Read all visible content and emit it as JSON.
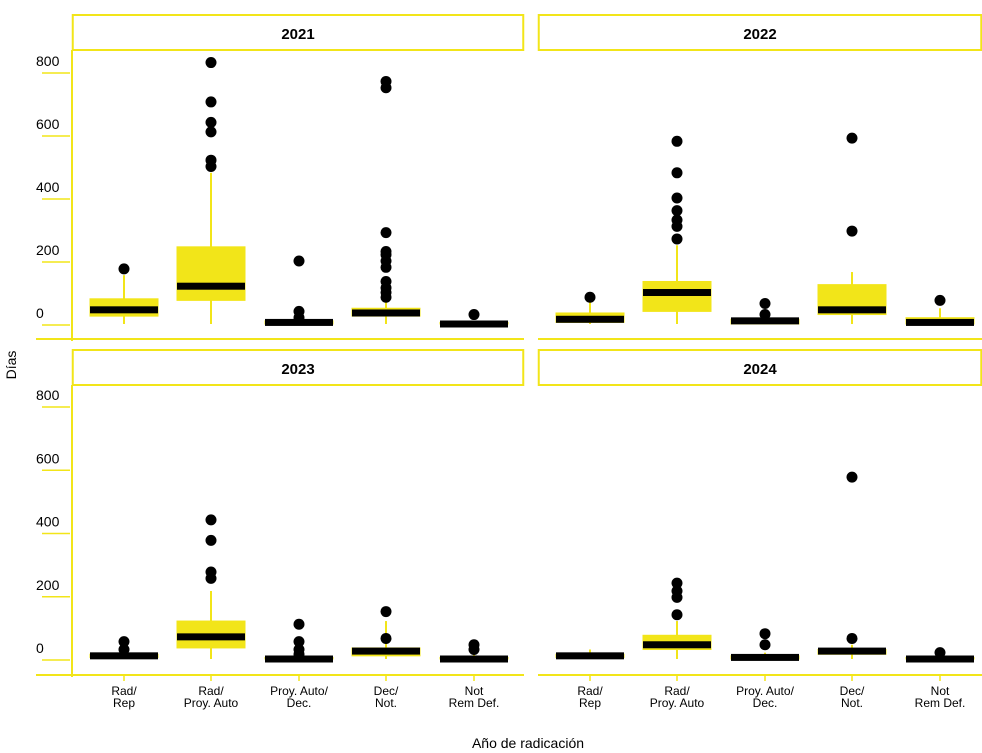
{
  "colors": {
    "accent": "#f2e519",
    "median": "#000000",
    "outlier": "#000000",
    "background": "#ffffff",
    "text": "#000000"
  },
  "chart_data": {
    "type": "boxplot",
    "facet_layout": "2x2 grid",
    "xlabel": "Año de radicación",
    "ylabel": "Días",
    "yticks": [
      0,
      200,
      400,
      600,
      800
    ],
    "ylim": [
      -20,
      830
    ],
    "categories": [
      "Rad/\nRep",
      "Rad/\nProy. Auto",
      "Proy. Auto/\nDec.",
      "Dec/\nNot.",
      "Not\nRem Def."
    ],
    "panels": [
      {
        "title": "2021",
        "boxes": [
          {
            "min": 0,
            "q1": 25,
            "median": 45,
            "q3": 80,
            "max": 155,
            "outliers": [
              175
            ]
          },
          {
            "min": 0,
            "q1": 75,
            "median": 120,
            "q3": 245,
            "max": 480,
            "outliers": [
              500,
              520,
              610,
              640,
              705,
              830
            ]
          },
          {
            "min": 0,
            "q1": 0,
            "median": 5,
            "q3": 10,
            "max": 12,
            "outliers": [
              20,
              40,
              200
            ]
          },
          {
            "min": 0,
            "q1": 25,
            "median": 35,
            "q3": 50,
            "max": 75,
            "outliers": [
              85,
              100,
              115,
              135,
              180,
              200,
              220,
              230,
              290,
              750,
              770
            ]
          },
          {
            "min": 0,
            "q1": 0,
            "median": 0,
            "q3": 5,
            "max": 5,
            "outliers": [
              30
            ]
          }
        ]
      },
      {
        "title": "2022",
        "boxes": [
          {
            "min": 0,
            "q1": 5,
            "median": 15,
            "q3": 35,
            "max": 75,
            "outliers": [
              85
            ]
          },
          {
            "min": 0,
            "q1": 40,
            "median": 100,
            "q3": 135,
            "max": 250,
            "outliers": [
              270,
              310,
              330,
              360,
              400,
              480,
              580
            ]
          },
          {
            "min": 0,
            "q1": 0,
            "median": 10,
            "q3": 15,
            "max": 25,
            "outliers": [
              30,
              65
            ]
          },
          {
            "min": 0,
            "q1": 30,
            "median": 45,
            "q3": 125,
            "max": 165,
            "outliers": [
              295,
              590
            ]
          },
          {
            "min": 0,
            "q1": 0,
            "median": 5,
            "q3": 20,
            "max": 50,
            "outliers": [
              75
            ]
          }
        ]
      },
      {
        "title": "2023",
        "boxes": [
          {
            "min": 0,
            "q1": 5,
            "median": 10,
            "q3": 15,
            "max": 25,
            "outliers": [
              30,
              55
            ]
          },
          {
            "min": 0,
            "q1": 35,
            "median": 70,
            "q3": 120,
            "max": 215,
            "outliers": [
              255,
              275,
              375,
              440
            ]
          },
          {
            "min": 0,
            "q1": 0,
            "median": 0,
            "q3": 5,
            "max": 10,
            "outliers": [
              15,
              30,
              55,
              110
            ]
          },
          {
            "min": 0,
            "q1": 10,
            "median": 25,
            "q3": 35,
            "max": 120,
            "outliers": [
              65,
              150
            ]
          },
          {
            "min": 0,
            "q1": 0,
            "median": 0,
            "q3": 5,
            "max": 15,
            "outliers": [
              30,
              45
            ]
          }
        ]
      },
      {
        "title": "2024",
        "boxes": [
          {
            "min": 0,
            "q1": 5,
            "median": 10,
            "q3": 15,
            "max": 30,
            "outliers": []
          },
          {
            "min": 0,
            "q1": 30,
            "median": 45,
            "q3": 75,
            "max": 120,
            "outliers": [
              140,
              195,
              215,
              240
            ]
          },
          {
            "min": 0,
            "q1": 0,
            "median": 5,
            "q3": 10,
            "max": 20,
            "outliers": [
              45,
              80
            ]
          },
          {
            "min": 0,
            "q1": 15,
            "median": 25,
            "q3": 30,
            "max": 45,
            "outliers": [
              65,
              575
            ]
          },
          {
            "min": 0,
            "q1": 0,
            "median": 0,
            "q3": 5,
            "max": 10,
            "outliers": [
              20
            ]
          }
        ]
      }
    ]
  }
}
